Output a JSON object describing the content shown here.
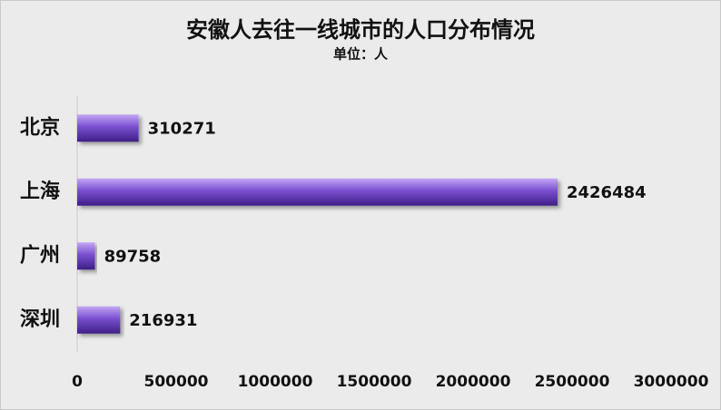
{
  "chart_data": {
    "type": "bar",
    "orientation": "horizontal",
    "title": "安徽人去往一线城市的人口分布情况",
    "subtitle": "单位：人",
    "categories": [
      "北京",
      "上海",
      "广州",
      "深圳"
    ],
    "values": [
      310271,
      2426484,
      89758,
      216931
    ],
    "color": "#7a4fd0",
    "xlim": [
      0,
      3000000
    ],
    "xticks": [
      0,
      500000,
      1000000,
      1500000,
      2000000,
      2500000,
      3000000
    ],
    "grid": false
  }
}
